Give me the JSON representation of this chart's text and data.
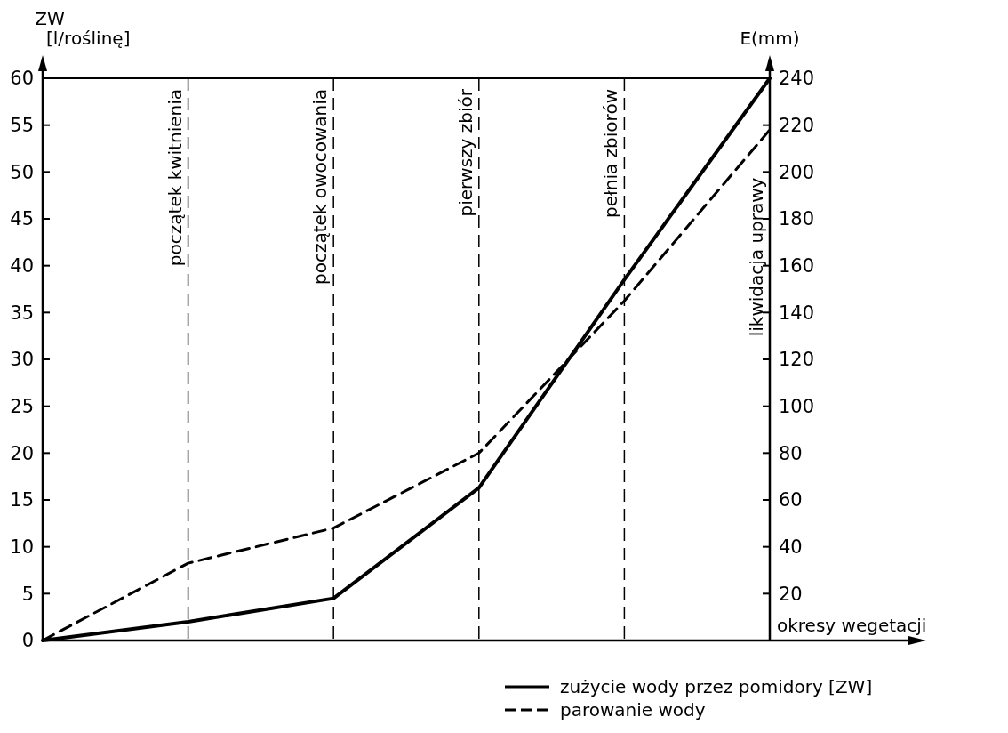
{
  "chart_data": {
    "type": "line",
    "xlabel": "okresy wegetacji",
    "ylabel": "ZW\n[l/roślinę]",
    "y2label": "E(mm)",
    "categories": [
      null,
      "początek kwitnienia",
      "początek owocowania",
      "pierwszy zbiór",
      "pełnia zbiorów",
      "likwidacja uprawy"
    ],
    "ylim": [
      0,
      60
    ],
    "yticks": [
      0,
      5,
      10,
      15,
      20,
      25,
      30,
      35,
      40,
      45,
      50,
      55,
      60
    ],
    "y2lim": [
      0,
      240
    ],
    "y2ticks": [
      20,
      40,
      60,
      80,
      100,
      120,
      140,
      160,
      180,
      200,
      220,
      240
    ],
    "grid": "x",
    "series": [
      {
        "name": "zużycie wody przez pomidory [ZW]",
        "color": "#000000",
        "line_style": "solid",
        "values": [
          0,
          2,
          4.5,
          16.3,
          38.5,
          60
        ]
      },
      {
        "name": "parowanie wody",
        "color": "#000000",
        "line_style": "dashed",
        "axis": "y2",
        "values": [
          0,
          33,
          48,
          80,
          145,
          218
        ]
      }
    ],
    "legend": "bottom right"
  }
}
